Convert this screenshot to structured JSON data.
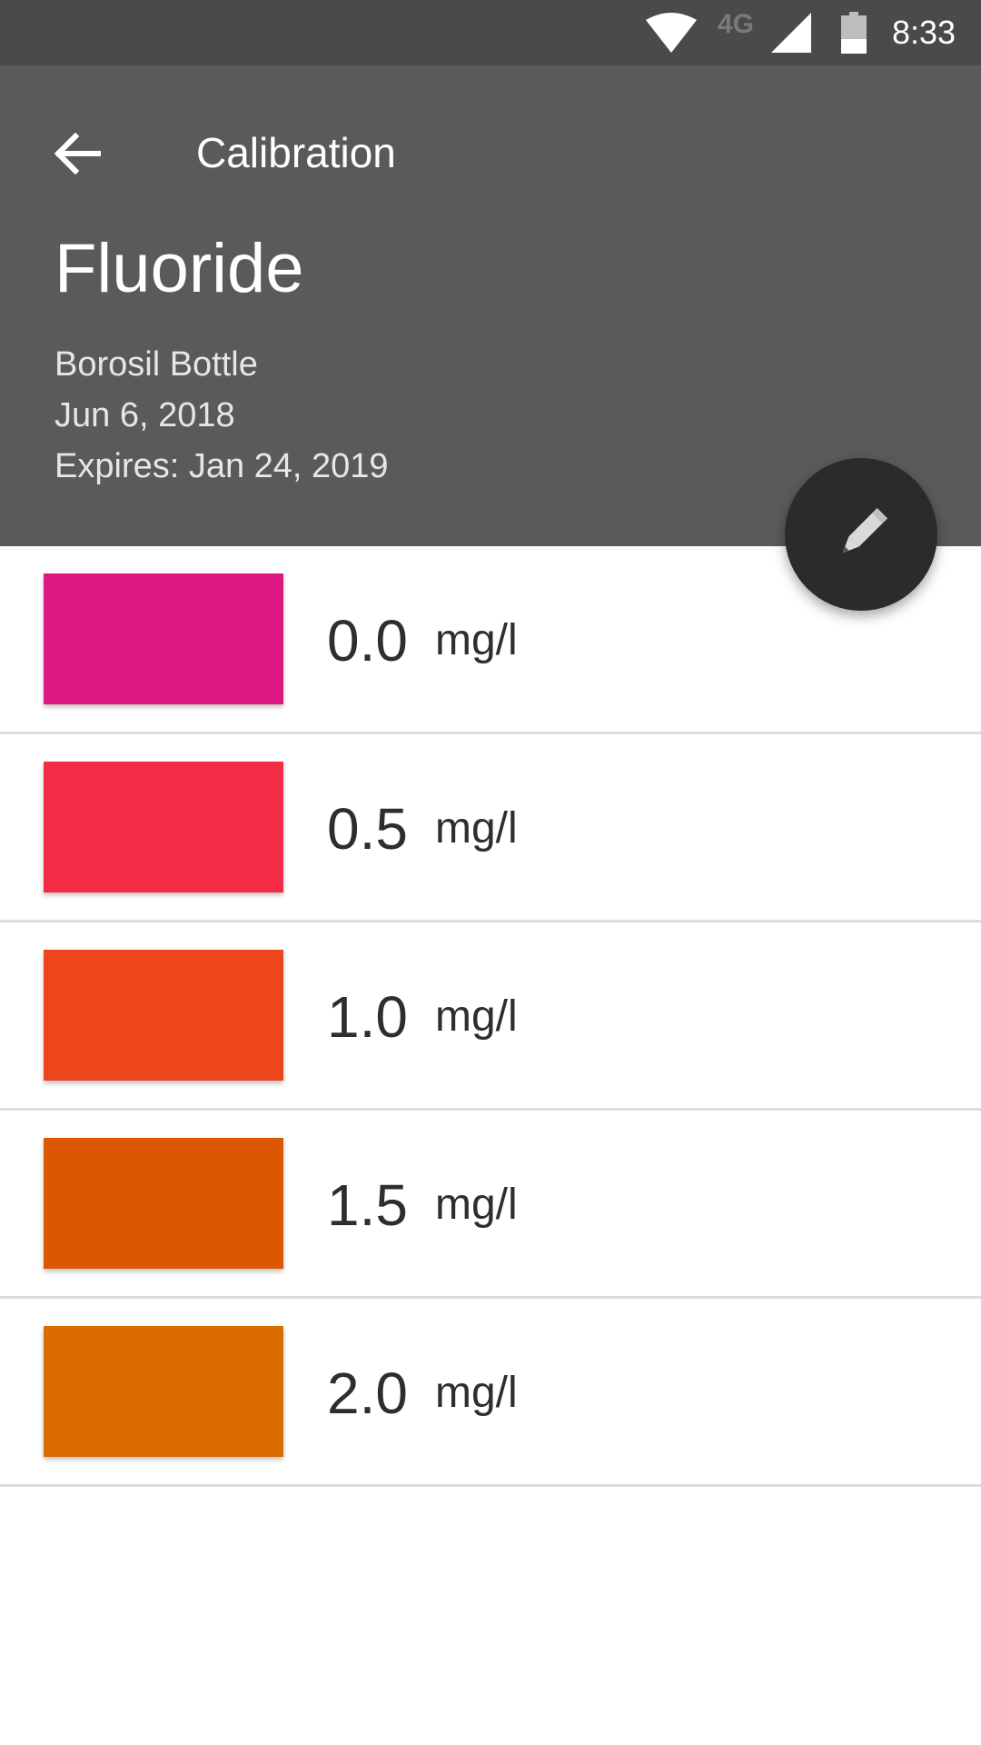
{
  "status_bar": {
    "network_type": "4G",
    "time": "8:33",
    "icons": [
      "wifi-icon",
      "cell-signal-icon",
      "battery-icon"
    ]
  },
  "toolbar": {
    "back_icon": "arrow-left-icon",
    "title": "Calibration"
  },
  "header": {
    "test_name": "Fluoride",
    "bottle": "Borosil Bottle",
    "date": "Jun 6, 2018",
    "expiry": "Expires: Jan 24, 2019",
    "background_color": "#5a5a5a"
  },
  "fab": {
    "icon": "pencil-icon",
    "color": "#2b2b2b"
  },
  "calibration_items": [
    {
      "value": "0.0",
      "unit": "mg/l",
      "color": "#df1784"
    },
    {
      "value": "0.5",
      "unit": "mg/l",
      "color": "#f22c45"
    },
    {
      "value": "1.0",
      "unit": "mg/l",
      "color": "#ed461d"
    },
    {
      "value": "1.5",
      "unit": "mg/l",
      "color": "#dc5702"
    },
    {
      "value": "2.0",
      "unit": "mg/l",
      "color": "#da6c02"
    }
  ]
}
